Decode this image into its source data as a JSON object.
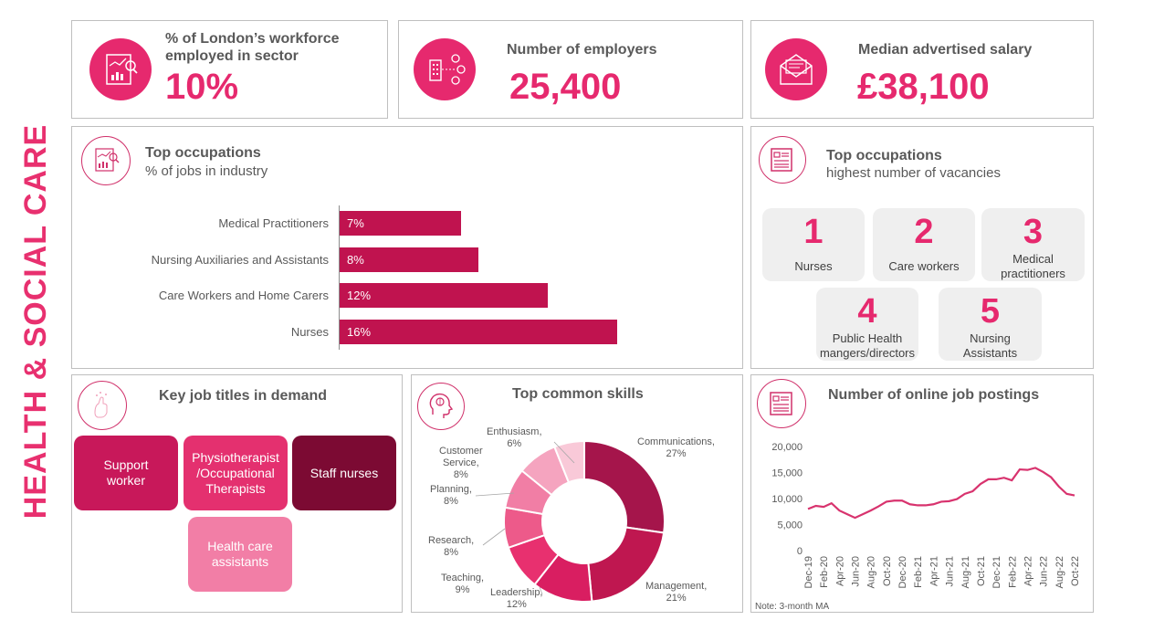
{
  "side_title": "HEALTH & SOCIAL CARE",
  "kpis": {
    "workforce": {
      "label_line1": "% of London’s workforce",
      "label_line2": "employed in sector",
      "value": "10%",
      "icon": "report-chart-icon"
    },
    "employers": {
      "label": "Number of employers",
      "value": "25,400",
      "icon": "building-network-icon"
    },
    "salary": {
      "label": "Median advertised salary",
      "value": "£38,100",
      "icon": "envelope-letter-icon"
    }
  },
  "top_occupations_share": {
    "title": "Top occupations",
    "subtitle": "% of jobs in industry",
    "bar_color": "#c0134f",
    "items": [
      {
        "label": "Medical Practitioners",
        "value": 7,
        "value_label": "7%"
      },
      {
        "label": "Nursing Auxiliaries and Assistants",
        "value": 8,
        "value_label": "8%"
      },
      {
        "label": "Care Workers and Home Carers",
        "value": 12,
        "value_label": "12%"
      },
      {
        "label": "Nurses",
        "value": 16,
        "value_label": "16%"
      }
    ]
  },
  "top_occupations_vacancies": {
    "title": "Top occupations",
    "subtitle": "highest number of vacancies",
    "items": [
      {
        "rank": "1",
        "name": "Nurses"
      },
      {
        "rank": "2",
        "name": "Care workers"
      },
      {
        "rank": "3",
        "name_line1": "Medical",
        "name_line2": "practitioners"
      },
      {
        "rank": "4",
        "name_line1": "Public Health",
        "name_line2": "mangers/directors"
      },
      {
        "rank": "5",
        "name_line1": "Nursing",
        "name_line2": "Assistants"
      }
    ]
  },
  "job_titles": {
    "title": "Key job titles in demand",
    "items": [
      {
        "line1": "Support",
        "line2": "worker",
        "color": "#c8185a"
      },
      {
        "line1": "Physiotherapist",
        "line2": "/Occupational",
        "line3": "Therapists",
        "color": "#e4306f"
      },
      {
        "line1": "Staff nurses",
        "color": "#7c0a33"
      },
      {
        "line1": "Health care",
        "line2": "assistants",
        "color": "#f27ea6"
      }
    ]
  },
  "skills": {
    "title": "Top common skills",
    "labels": {
      "communications": [
        "Communications,",
        "27%"
      ],
      "management": [
        "Management,",
        "21%"
      ],
      "leadership": [
        "Leadership,",
        "12%"
      ],
      "teaching": [
        "Teaching,",
        "9%"
      ],
      "research": [
        "Research,",
        "8%"
      ],
      "planning": [
        "Planning,",
        "8%"
      ],
      "customer": [
        "Customer",
        "Service,",
        "8%"
      ],
      "enthusiasm": [
        "Enthusiasm,",
        "6%"
      ]
    }
  },
  "postings": {
    "title": "Number of online job postings",
    "note": "Note: 3-month MA"
  },
  "chart_data": [
    {
      "type": "pie",
      "title": "Top common skills",
      "categories": [
        "Communications",
        "Management",
        "Leadership",
        "Teaching",
        "Research",
        "Planning",
        "Customer Service",
        "Enthusiasm"
      ],
      "values": [
        27,
        21,
        12,
        9,
        8,
        8,
        8,
        6
      ],
      "colors": [
        "#a5154b",
        "#bf1750",
        "#d91e61",
        "#e8306f",
        "#ed5a8a",
        "#f17ea5",
        "#f5a4bf",
        "#f9c9d8"
      ]
    },
    {
      "type": "line",
      "title": "Number of online job postings",
      "x": [
        "Dec-19",
        "Jan-20",
        "Feb-20",
        "Mar-20",
        "Apr-20",
        "May-20",
        "Jun-20",
        "Jul-20",
        "Aug-20",
        "Sep-20",
        "Oct-20",
        "Nov-20",
        "Dec-20",
        "Jan-21",
        "Feb-21",
        "Mar-21",
        "Apr-21",
        "May-21",
        "Jun-21",
        "Jul-21",
        "Aug-21",
        "Sep-21",
        "Oct-21",
        "Nov-21",
        "Dec-21",
        "Jan-22",
        "Feb-22",
        "Mar-22",
        "Apr-22",
        "May-22",
        "Jun-22",
        "Jul-22",
        "Aug-22",
        "Sep-22",
        "Oct-22"
      ],
      "tick_labels": [
        "Dec-19",
        "Feb-20",
        "Apr-20",
        "Jun-20",
        "Aug-20",
        "Oct-20",
        "Dec-20",
        "Feb-21",
        "Apr-21",
        "Jun-21",
        "Aug-21",
        "Oct-21",
        "Dec-21",
        "Feb-22",
        "Apr-22",
        "Jun-22",
        "Aug-22",
        "Oct-22"
      ],
      "series": [
        {
          "values": [
            8000,
            8600,
            8400,
            9100,
            7700,
            7000,
            6300,
            7000,
            7700,
            8500,
            9400,
            9600,
            9600,
            8900,
            8700,
            8700,
            8900,
            9400,
            9500,
            9900,
            10900,
            11400,
            12800,
            13700,
            13700,
            14000,
            13500,
            15600,
            15500,
            15900,
            15100,
            14100,
            12300,
            10900,
            10600
          ],
          "color": "#d8336e"
        }
      ],
      "yticks": [
        0,
        5000,
        10000,
        15000,
        20000
      ],
      "ytick_labels": [
        "0",
        "5,000",
        "10,000",
        "15,000",
        "20,000"
      ],
      "ylim": [
        0,
        20000
      ],
      "grid": false
    }
  ]
}
